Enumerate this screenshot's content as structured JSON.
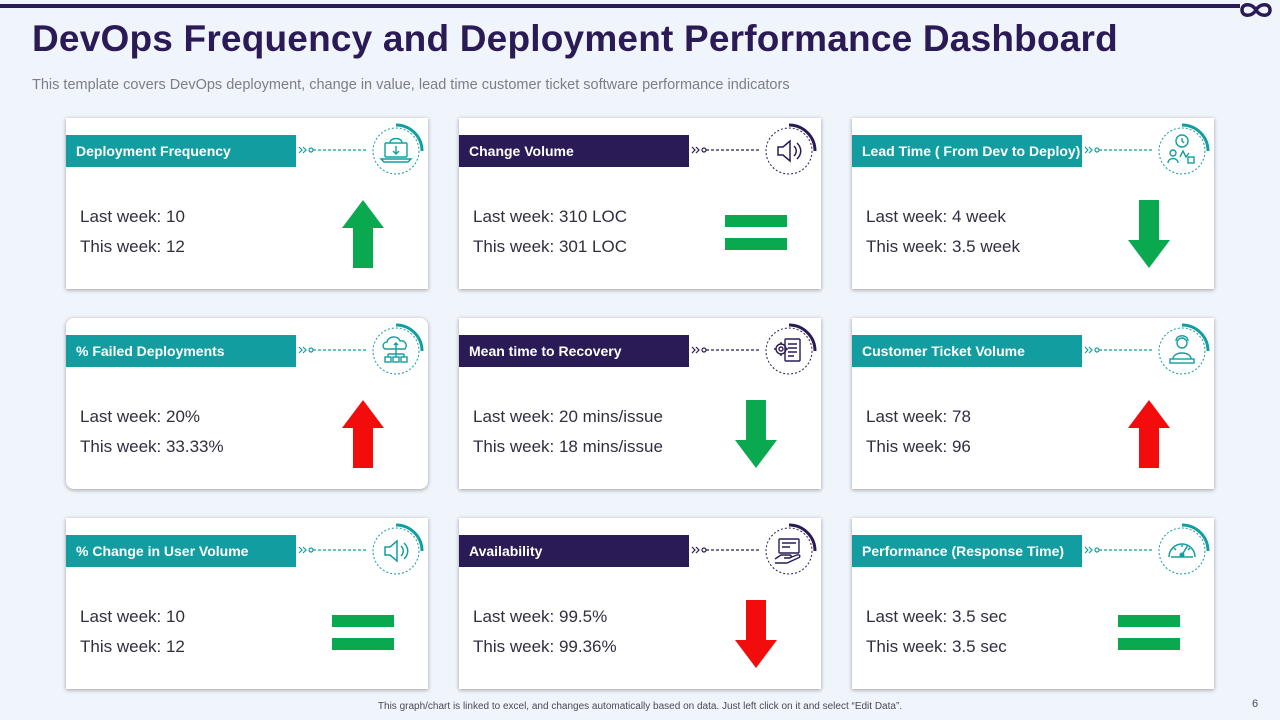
{
  "header": {
    "title": "DevOps Frequency and Deployment Performance Dashboard",
    "subtitle": "This template covers DevOps deployment, change in value, lead time customer ticket software performance indicators"
  },
  "colors": {
    "navy": "#2a1a55",
    "teal": "#129ea0",
    "up_green": "#0aa84f",
    "up_red": "#f20c0c",
    "equal_green": "#0aa84f"
  },
  "cards": [
    {
      "label": "Deployment Frequency",
      "label_style": "teal",
      "icon": "cloud-laptop-icon",
      "last_week": "Last week: 10",
      "this_week": "This week: 12",
      "indicator": "up-arrow-green"
    },
    {
      "label": "Change Volume",
      "label_style": "navy",
      "icon": "speaker-icon",
      "last_week": "Last week: 310 LOC",
      "this_week": "This week: 301 LOC",
      "indicator": "equal-sign-green"
    },
    {
      "label": "Lead Time ( From Dev to Deploy)",
      "label_style": "teal",
      "icon": "clock-team-icon",
      "last_week": "Last week: 4 week",
      "this_week": "This week: 3.5 week",
      "indicator": "down-arrow-green"
    },
    {
      "label": "% Failed Deployments",
      "label_style": "teal",
      "icon": "cloud-network-icon",
      "last_week": "Last week: 20%",
      "this_week": "This week: 33.33%",
      "indicator": "up-arrow-red"
    },
    {
      "label": "Mean time to Recovery",
      "label_style": "navy",
      "icon": "gear-document-icon",
      "last_week": "Last week: 20 mins/issue",
      "this_week": "This week: 18 mins/issue",
      "indicator": "down-arrow-green"
    },
    {
      "label": "Customer  Ticket Volume",
      "label_style": "teal",
      "icon": "support-person-icon",
      "last_week": "Last week: 78",
      "this_week": "This week: 96",
      "indicator": "up-arrow-red"
    },
    {
      "label": "% Change in User Volume",
      "label_style": "teal",
      "icon": "speaker-icon",
      "last_week": "Last week: 10",
      "this_week": "This week: 12",
      "indicator": "equal-sign-green"
    },
    {
      "label": "Availability",
      "label_style": "navy",
      "icon": "hand-card-icon",
      "last_week": "Last week: 99.5%",
      "this_week": "This week: 99.36%",
      "indicator": "down-arrow-red"
    },
    {
      "label": "Performance (Response  Time)",
      "label_style": "teal",
      "icon": "speedometer-icon",
      "last_week": "Last week: 3.5 sec",
      "this_week": "This week: 3.5 sec",
      "indicator": "equal-sign-green"
    }
  ],
  "footer": {
    "note": "This graph/chart is linked to excel, and changes automatically based on data. Just left click on it and select “Edit Data”.",
    "page_number": "6"
  }
}
